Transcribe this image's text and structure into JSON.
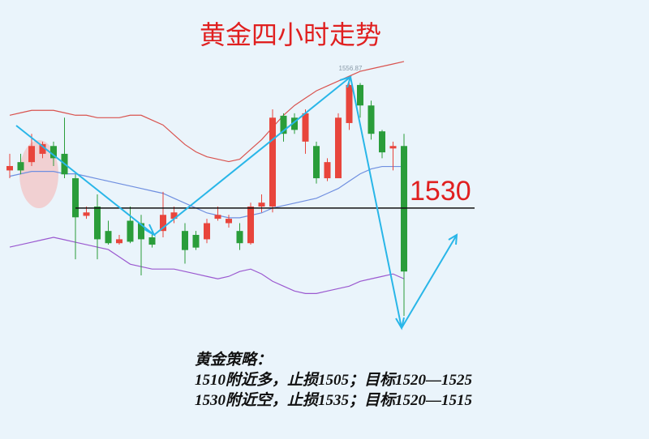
{
  "chart_data": {
    "type": "candlestick",
    "title": "黄金四小时走势",
    "ylim": [
      1482.7,
      1572.6
    ],
    "up_color": "#e8453c",
    "down_color": "#2a9d3a",
    "candles": [
      {
        "open": 1537.7,
        "high": 1541.1,
        "low": 1536.1,
        "close": 1538.6
      },
      {
        "open": 1539.4,
        "high": 1541.1,
        "low": 1536.9,
        "close": 1537.7
      },
      {
        "open": 1539.4,
        "high": 1545.2,
        "low": 1538.6,
        "close": 1542.7
      },
      {
        "open": 1541.1,
        "high": 1543.6,
        "low": 1540.2,
        "close": 1543.1
      },
      {
        "open": 1542.7,
        "high": 1543.6,
        "low": 1538.6,
        "close": 1540.2
      },
      {
        "open": 1541.1,
        "high": 1548.5,
        "low": 1536.1,
        "close": 1536.9
      },
      {
        "open": 1536.1,
        "high": 1536.9,
        "low": 1519.5,
        "close": 1528.1
      },
      {
        "open": 1528.4,
        "high": 1530.3,
        "low": 1527.8,
        "close": 1529.1
      },
      {
        "open": 1530.3,
        "high": 1532.8,
        "low": 1519.5,
        "close": 1523.6
      },
      {
        "open": 1525.3,
        "high": 1527.4,
        "low": 1522.5,
        "close": 1522.8
      },
      {
        "open": 1522.8,
        "high": 1524.5,
        "low": 1522.5,
        "close": 1523.6
      },
      {
        "open": 1527.4,
        "high": 1530.3,
        "low": 1522.8,
        "close": 1523.1
      },
      {
        "open": 1526.9,
        "high": 1528.6,
        "low": 1516.2,
        "close": 1523.6
      },
      {
        "open": 1524.0,
        "high": 1525.3,
        "low": 1521.9,
        "close": 1522.5
      },
      {
        "open": 1525.3,
        "high": 1533.3,
        "low": 1524.0,
        "close": 1528.6
      },
      {
        "open": 1527.8,
        "high": 1530.3,
        "low": 1526.9,
        "close": 1529.1
      },
      {
        "open": 1525.3,
        "high": 1526.9,
        "low": 1518.6,
        "close": 1521.4
      },
      {
        "open": 1524.5,
        "high": 1525.3,
        "low": 1521.4,
        "close": 1521.9
      },
      {
        "open": 1523.6,
        "high": 1527.8,
        "low": 1522.8,
        "close": 1526.9
      },
      {
        "open": 1527.8,
        "high": 1530.3,
        "low": 1527.4,
        "close": 1528.6
      },
      {
        "open": 1526.9,
        "high": 1528.6,
        "low": 1526.0,
        "close": 1527.8
      },
      {
        "open": 1525.3,
        "high": 1526.9,
        "low": 1521.4,
        "close": 1522.8
      },
      {
        "open": 1522.8,
        "high": 1531.1,
        "low": 1522.5,
        "close": 1530.3
      },
      {
        "open": 1530.3,
        "high": 1532.8,
        "low": 1529.1,
        "close": 1531.1
      },
      {
        "open": 1530.3,
        "high": 1550.2,
        "low": 1529.1,
        "close": 1548.5
      },
      {
        "open": 1548.9,
        "high": 1549.4,
        "low": 1543.6,
        "close": 1545.2
      },
      {
        "open": 1548.5,
        "high": 1549.4,
        "low": 1545.2,
        "close": 1546.0
      },
      {
        "open": 1543.6,
        "high": 1550.2,
        "low": 1541.1,
        "close": 1549.4
      },
      {
        "open": 1542.7,
        "high": 1543.6,
        "low": 1535.0,
        "close": 1536.1
      },
      {
        "open": 1536.1,
        "high": 1540.2,
        "low": 1535.5,
        "close": 1539.4
      },
      {
        "open": 1536.1,
        "high": 1549.4,
        "low": 1536.1,
        "close": 1548.5
      },
      {
        "open": 1547.4,
        "high": 1556.8,
        "low": 1546.0,
        "close": 1555.2
      },
      {
        "open": 1555.2,
        "high": 1555.6,
        "low": 1548.5,
        "close": 1551.0
      },
      {
        "open": 1551.0,
        "high": 1552.0,
        "low": 1544.0,
        "close": 1545.2
      },
      {
        "open": 1545.7,
        "high": 1546.0,
        "low": 1540.2,
        "close": 1541.4
      },
      {
        "open": 1542.2,
        "high": 1543.6,
        "low": 1537.7,
        "close": 1542.7
      },
      {
        "open": 1542.7,
        "high": 1545.2,
        "low": 1507.9,
        "close": 1517.0
      }
    ],
    "series": [
      {
        "color": "#d9534f",
        "values": [
          1549,
          1549.5,
          1550,
          1550,
          1550,
          1549.5,
          1549,
          1549,
          1548.5,
          1548.5,
          1548.5,
          1549,
          1549,
          1548,
          1547,
          1545,
          1543,
          1541.5,
          1540.5,
          1540,
          1539.5,
          1540,
          1542,
          1544,
          1546.5,
          1549,
          1551,
          1552.5,
          1554,
          1555,
          1556,
          1557,
          1558,
          1558.5,
          1559,
          1559.5,
          1560
        ]
      },
      {
        "color": "#6f8fe0",
        "values": [
          1536.5,
          1537,
          1537.5,
          1537.5,
          1537.5,
          1537,
          1537,
          1536.5,
          1536,
          1535.5,
          1535,
          1534.5,
          1534,
          1533.5,
          1533,
          1532,
          1531,
          1530,
          1529,
          1528.5,
          1528,
          1528,
          1528.5,
          1529,
          1530,
          1530.5,
          1531,
          1531.5,
          1532,
          1533,
          1534,
          1535.5,
          1537,
          1538,
          1538.5,
          1538.5,
          1538.5
        ]
      },
      {
        "color": "#9b59d0",
        "values": [
          1522,
          1522.5,
          1523,
          1523.5,
          1524,
          1523.5,
          1523,
          1522.5,
          1522,
          1521.5,
          1520,
          1518.5,
          1518,
          1517.5,
          1517.5,
          1517.5,
          1517,
          1516.5,
          1516,
          1515.5,
          1516,
          1517,
          1517.5,
          1516.5,
          1515,
          1514,
          1513,
          1512.5,
          1512.5,
          1513,
          1513.5,
          1514,
          1515,
          1515.5,
          1516,
          1516.5,
          1515.5
        ]
      }
    ],
    "level": 1530,
    "peak": 1556.87,
    "strategy": [
      "黄金策略：",
      "1510附近多，止损1505；目标1520—1525",
      "1530附近空，止损1535；目标1520—1515"
    ]
  }
}
